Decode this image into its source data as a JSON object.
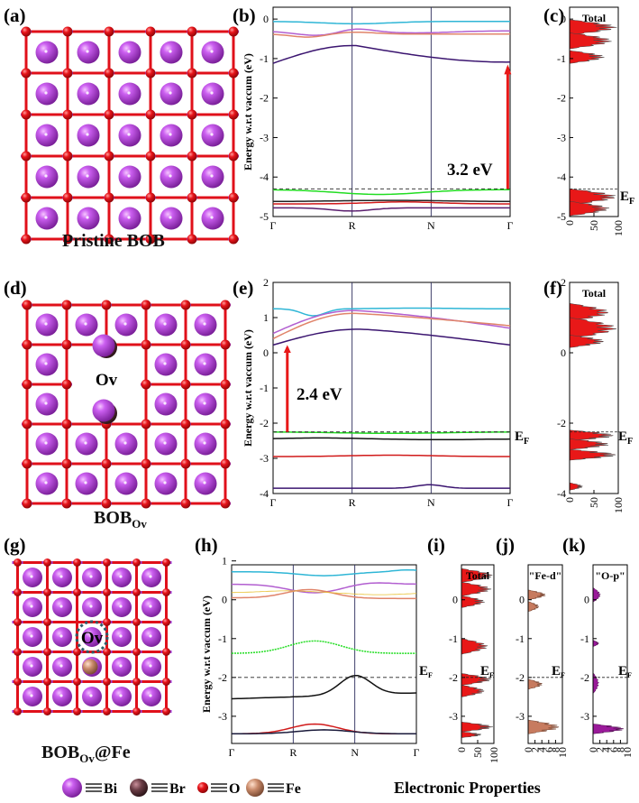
{
  "figure": {
    "panels": {
      "a": "(a)",
      "b": "(b)",
      "c": "(c)",
      "d": "(d)",
      "e": "(e)",
      "f": "(f)",
      "g": "(g)",
      "h": "(h)",
      "i": "(i)",
      "j": "(j)",
      "k": "(k)"
    },
    "structures": {
      "pristine_caption": "Pristine BOB",
      "ov_caption_main": "BOB",
      "ov_caption_sub": "Ov",
      "fe_caption_main": "BOB",
      "fe_caption_sub": "Ov",
      "fe_caption_tail": "@Fe",
      "ov_label": "Ov",
      "ov_label_small": "Ov"
    },
    "band_axis_label": "Energy w.r.t vaccum (eV)",
    "band_axis_label_small": "Energy w.r.t vaccum (eV)",
    "kpath": [
      "Γ",
      "R",
      "N",
      "Γ"
    ],
    "fermi_label_main": "E",
    "fermi_label_sub": "F",
    "band_gaps": {
      "pristine": "3.2 eV",
      "ov": "2.4 eV"
    },
    "dos_titles": {
      "c": "Total",
      "f": "Total",
      "i": "Total",
      "j": "\"Fe-d\"",
      "k": "\"O-p\""
    },
    "band_b_yticks": [
      "0",
      "-1",
      "-2",
      "-3",
      "-4",
      "-5"
    ],
    "dos_c_yticks": [
      "0",
      "-1",
      "-2",
      "-3",
      "-4",
      "-5"
    ],
    "band_e_yticks": [
      "2",
      "1",
      "0",
      "-1",
      "-2",
      "-3",
      "-4"
    ],
    "dos_f_yticks": [
      "2",
      "0",
      "-2",
      "-4"
    ],
    "band_h_yticks": [
      "1",
      "0",
      "-1",
      "-2",
      "-3"
    ],
    "dos_i_yticks": [
      "0",
      "-1",
      "-2",
      "-3"
    ],
    "dos_jk_yticks": [
      "0",
      "-1",
      "-2",
      "-3"
    ],
    "dos_xticks_ab": [
      "0",
      "50",
      "100"
    ],
    "dos_xticks_j": [
      "0",
      "2",
      "4",
      "6",
      "8",
      "10"
    ],
    "dos_xticks_k": [
      "0",
      "2",
      "4",
      "6",
      "8",
      "10"
    ],
    "legend": {
      "bi": "Bi",
      "br": "Br",
      "o": "O",
      "fe": "Fe",
      "title": "Electronic Properties"
    },
    "colors": {
      "bi": "#b23fd6",
      "o": "#e8141a",
      "br": "#6b3d46",
      "fe": "#c98a6a",
      "dos": "#e81818",
      "dos_fe": "#c77b5f",
      "dos_o": "#9a1a9a"
    }
  }
}
